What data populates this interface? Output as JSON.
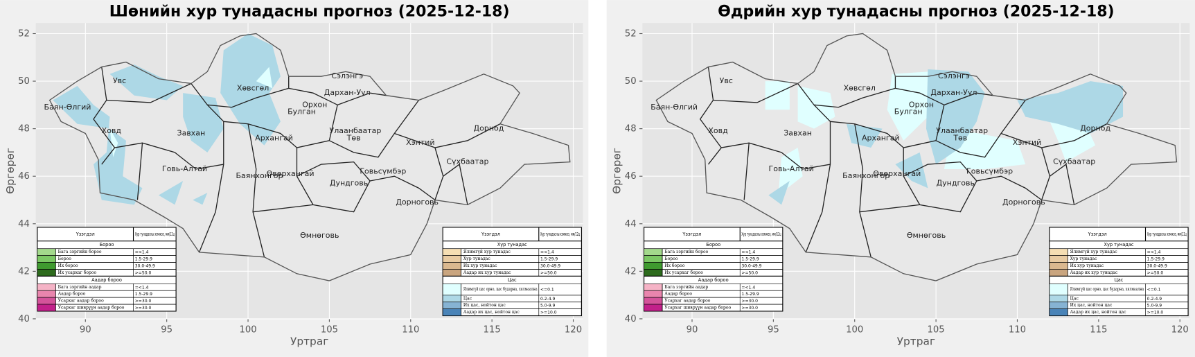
{
  "maps": [
    {
      "title": "Шөнийн хур тунадасны прогноз (2025-12-18)",
      "xlabel": "Уртраг",
      "ylabel": "Өргөрөг",
      "xlim": [
        86.95,
        120.6
      ],
      "ylim": [
        40,
        52.45
      ],
      "xticks": [
        90,
        95,
        100,
        105,
        110,
        115,
        120
      ],
      "yticks": [
        40,
        42,
        44,
        46,
        48,
        50,
        52
      ],
      "grid": true,
      "labels": [
        "Увс",
        "Баян-Өлгий",
        "Ховд",
        "Хөвсгөл",
        "Завхан",
        "Архангай",
        "Булган",
        "Орхон",
        "Сэлэнгэ",
        "Дархан-Уул",
        "Улаанбаатар",
        "Төв",
        "Хэнтий",
        "Дорнод",
        "Сүхбаатар",
        "Говь-Алтай",
        "Баянхонгор",
        "Өвөрхангай",
        "Дундговь",
        "Говьсүмбэр",
        "Дорноговь",
        "Өмнөговь"
      ],
      "legends": [
        {
          "header": [
            "Үзэгдэл",
            "Хур тунадасны хэмжээ, мм/12ц"
          ],
          "sections": [
            {
              "title": "Бороо",
              "rows": [
                {
                  "name": "Бага зэргийн бороо",
                  "range": "=<1.4",
                  "color": "#a3d98c"
                },
                {
                  "name": "Бороо",
                  "range": "1.5-29.9",
                  "color": "#7cc865"
                },
                {
                  "name": "Их бороо",
                  "range": "30.0-49.9",
                  "color": "#3f9a2f"
                },
                {
                  "name": "Их усархаг бороо",
                  "range": ">=50.0",
                  "color": "#2d6b1d"
                }
              ]
            },
            {
              "title": "Аадар бороо",
              "rows": [
                {
                  "name": "Бага зэргийн аадар",
                  "range": "=<1.4",
                  "color": "#f5b3c6"
                },
                {
                  "name": "Аадар бороо",
                  "range": "1.5-29.9",
                  "color": "#e985ad"
                },
                {
                  "name": "Усархаг аадар бороо",
                  "range": ">=30.0",
                  "color": "#d4539a"
                },
                {
                  "name": "Усархаг шиврүүн аадар бороо",
                  "range": ">=30.0",
                  "color": "#c2208a"
                }
              ]
            }
          ]
        },
        {
          "header": [
            "Үзэгдэл",
            "Хур тунадасны хэмжээ, мм/12ц"
          ],
          "sections": [
            {
              "title": "Хур тунадас",
              "rows": [
                {
                  "name": "Ялимгүй хур тунадас",
                  "range": "=<1.4",
                  "color": "#f5deb3"
                },
                {
                  "name": "Хур тунадас",
                  "range": "1.5-29.9",
                  "color": "#e8cba2"
                },
                {
                  "name": "Их хур тунадас",
                  "range": "30.0-49.9",
                  "color": "#dab88f"
                },
                {
                  "name": "Аадар их хур тунадас",
                  "range": ">=50.0",
                  "color": "#c9a57f"
                }
              ]
            },
            {
              "title": "Цас",
              "rows": [
                {
                  "name": "Ялимгүй цас орно, цас бударна, хялмаална",
                  "range": "<=0.1",
                  "color": "#e0ffff"
                },
                {
                  "name": "Цас",
                  "range": "0.2-4.9",
                  "color": "#add8e6"
                },
                {
                  "name": "Их цас, нойтон цас",
                  "range": "5.0-9.9",
                  "color": "#86b3d3"
                },
                {
                  "name": "Аадар их цас, нойтон цас",
                  "range": ">=10.0",
                  "color": "#4a84b8"
                }
              ]
            }
          ]
        }
      ]
    },
    {
      "title": "Өдрийн хур тунадасны прогноз (2025-12-18)",
      "xlabel": "Уртраг",
      "ylabel": "Өргөрөг",
      "xlim": [
        86.95,
        120.6
      ],
      "ylim": [
        40,
        52.45
      ],
      "xticks": [
        90,
        95,
        100,
        105,
        110,
        115,
        120
      ],
      "yticks": [
        40,
        42,
        44,
        46,
        48,
        50,
        52
      ],
      "grid": true,
      "labels": [
        "Увс",
        "Баян-Өлгий",
        "Ховд",
        "Хөвсгөл",
        "Завхан",
        "Архангай",
        "Булган",
        "Орхон",
        "Сэлэнгэ",
        "Дархан-Уул",
        "Улаанбаатар",
        "Төв",
        "Хэнтий",
        "Дорнод",
        "Сүхбаатар",
        "Говь-Алтай",
        "Баянхонгор",
        "Өвөрхангай",
        "Дундговь",
        "Говьсүмбэр",
        "Дорноговь",
        "Өмнөговь"
      ],
      "legends": [
        {
          "header": [
            "Үзэгдэл",
            "Хур тунадасны хэмжээ, мм/12ц"
          ],
          "sections": [
            {
              "title": "Бороо",
              "rows": [
                {
                  "name": "Бага зэргийн бороо",
                  "range": "=<1.4",
                  "color": "#a3d98c"
                },
                {
                  "name": "Бороо",
                  "range": "1.5-29.9",
                  "color": "#7cc865"
                },
                {
                  "name": "Их бороо",
                  "range": "30.0-49.9",
                  "color": "#3f9a2f"
                },
                {
                  "name": "Их усархаг бороо",
                  "range": ">=50.0",
                  "color": "#2d6b1d"
                }
              ]
            },
            {
              "title": "Аадар бороо",
              "rows": [
                {
                  "name": "Бага зэргийн аадар",
                  "range": "=<1.4",
                  "color": "#f5b3c6"
                },
                {
                  "name": "Аадар бороо",
                  "range": "1.5-29.9",
                  "color": "#e985ad"
                },
                {
                  "name": "Усархаг аадар бороо",
                  "range": ">=30.0",
                  "color": "#d4539a"
                },
                {
                  "name": "Усархаг шиврүүн аадар бороо",
                  "range": ">=30.0",
                  "color": "#c2208a"
                }
              ]
            }
          ]
        },
        {
          "header": [
            "Үзэгдэл",
            "Хур тунадасны хэмжээ, мм/12ц"
          ],
          "sections": [
            {
              "title": "Хур тунадас",
              "rows": [
                {
                  "name": "Ялимгүй хур тунадас",
                  "range": "=<1.4",
                  "color": "#f5deb3"
                },
                {
                  "name": "Хур тунадас",
                  "range": "1.5-29.9",
                  "color": "#e8cba2"
                },
                {
                  "name": "Их хур тунадас",
                  "range": "30.0-49.9",
                  "color": "#dab88f"
                },
                {
                  "name": "Аадар их хур тунадас",
                  "range": ">=50.0",
                  "color": "#c9a57f"
                }
              ]
            },
            {
              "title": "Цас",
              "rows": [
                {
                  "name": "Ялимгүй цас орно, цас бударна, хялмаална",
                  "range": "<=0.1",
                  "color": "#e0ffff"
                },
                {
                  "name": "Цас",
                  "range": "0.2-4.9",
                  "color": "#add8e6"
                },
                {
                  "name": "Их цас, нойтон цас",
                  "range": "5.0-9.9",
                  "color": "#86b3d3"
                },
                {
                  "name": "Аадар их цас, нойтон цас",
                  "range": ">=10.0",
                  "color": "#4a84b8"
                }
              ]
            }
          ]
        }
      ]
    }
  ]
}
